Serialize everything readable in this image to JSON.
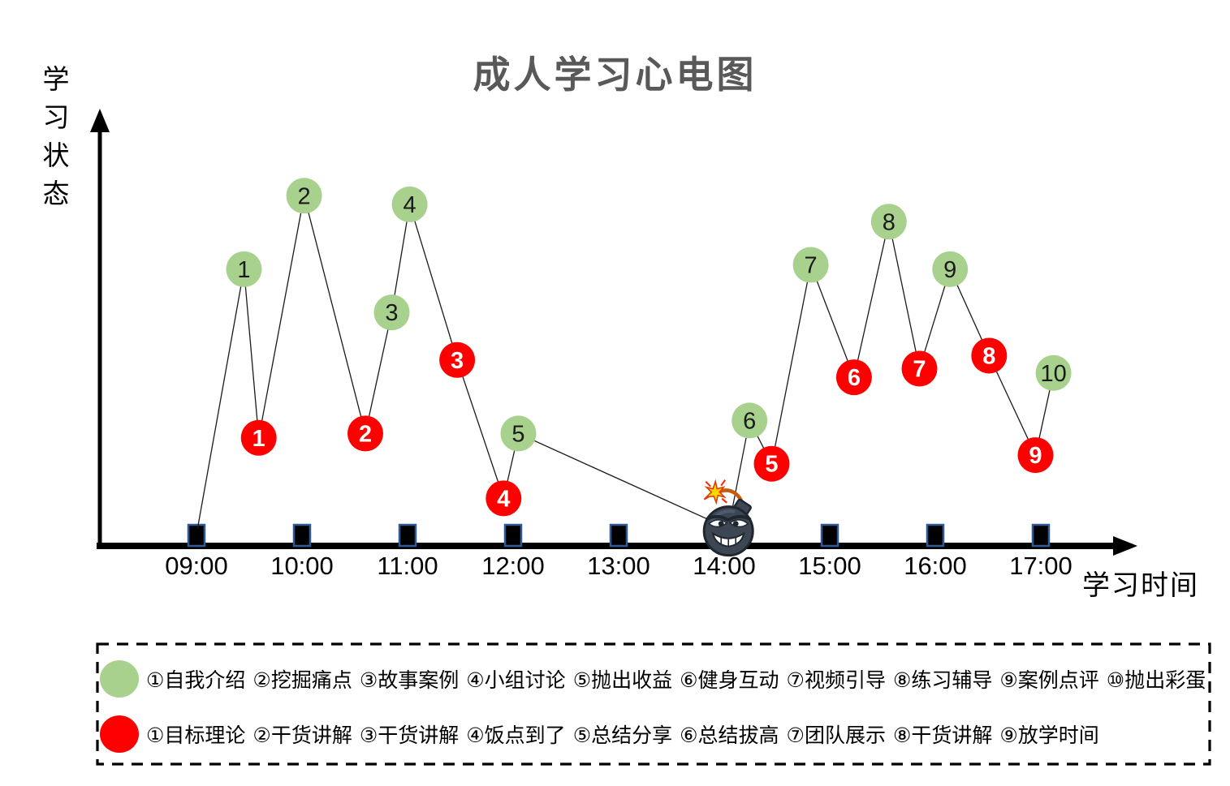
{
  "title": "成人学习心电图",
  "y_axis": {
    "label": "学习状态"
  },
  "x_axis": {
    "label": "学习时间",
    "ticks": [
      "09:00",
      "10:00",
      "11:00",
      "12:00",
      "13:00",
      "14:00",
      "15:00",
      "16:00",
      "17:00"
    ],
    "bomb_tick": "14:00"
  },
  "colors": {
    "green_marker": "#A9D18E",
    "red_marker": "#FF0000",
    "line": "#1a1a1a",
    "title_gray": "#595959",
    "tick_square_fill": "#000000",
    "tick_square_border": "#2E5B97",
    "axis": "#000000"
  },
  "chart_data": {
    "type": "line",
    "title": "成人学习心电图",
    "xlabel": "学习时间",
    "ylabel": "学习状态",
    "x_unit": "hour of day (09:00–17:00)",
    "xlim": [
      8.6,
      17.9
    ],
    "ylim": [
      0,
      100
    ],
    "grid": false,
    "legend_position": "bottom",
    "y_note": "y values estimated 0–100 from marker heights; y axis has no tick labels",
    "points": [
      {
        "kind": "start",
        "label": "",
        "t": 9.01,
        "v": 4
      },
      {
        "kind": "green",
        "label": "1",
        "t": 9.45,
        "v": 64
      },
      {
        "kind": "red",
        "label": "1",
        "t": 9.59,
        "v": 25
      },
      {
        "kind": "green",
        "label": "2",
        "t": 10.02,
        "v": 81
      },
      {
        "kind": "red",
        "label": "2",
        "t": 10.6,
        "v": 26
      },
      {
        "kind": "green",
        "label": "3",
        "t": 10.85,
        "v": 54
      },
      {
        "kind": "green",
        "label": "4",
        "t": 11.02,
        "v": 79
      },
      {
        "kind": "red",
        "label": "3",
        "t": 11.47,
        "v": 43
      },
      {
        "kind": "red",
        "label": "4",
        "t": 11.91,
        "v": 11
      },
      {
        "kind": "green",
        "label": "5",
        "t": 12.05,
        "v": 26
      },
      {
        "kind": "bomb",
        "label": "",
        "t": 14.04,
        "v": 4
      },
      {
        "kind": "green",
        "label": "6",
        "t": 14.24,
        "v": 29
      },
      {
        "kind": "red",
        "label": "5",
        "t": 14.45,
        "v": 19
      },
      {
        "kind": "green",
        "label": "7",
        "t": 14.82,
        "v": 65
      },
      {
        "kind": "red",
        "label": "6",
        "t": 15.23,
        "v": 39
      },
      {
        "kind": "green",
        "label": "8",
        "t": 15.56,
        "v": 75
      },
      {
        "kind": "red",
        "label": "7",
        "t": 15.85,
        "v": 41
      },
      {
        "kind": "green",
        "label": "9",
        "t": 16.14,
        "v": 64
      },
      {
        "kind": "red",
        "label": "8",
        "t": 16.51,
        "v": 44
      },
      {
        "kind": "red",
        "label": "9",
        "t": 16.95,
        "v": 21
      },
      {
        "kind": "green",
        "label": "10",
        "t": 17.12,
        "v": 40
      }
    ]
  },
  "legend": {
    "rows": [
      {
        "name": "green-phases",
        "color": "#A9D18E",
        "items": [
          "①自我介绍",
          "②挖掘痛点",
          "③故事案例",
          "④小组讨论",
          "⑤抛出收益",
          "⑥健身互动",
          "⑦视频引导",
          "⑧练习辅导",
          "⑨案例点评",
          "⑩抛出彩蛋"
        ]
      },
      {
        "name": "red-phases",
        "color": "#FF0000",
        "items": [
          "①目标理论",
          "②干货讲解",
          "③干货讲解",
          "④饭点到了",
          "⑤总结分享",
          "⑥总结拔高",
          "⑦团队展示",
          "⑧干货讲解",
          "⑨放学时间"
        ]
      }
    ]
  }
}
